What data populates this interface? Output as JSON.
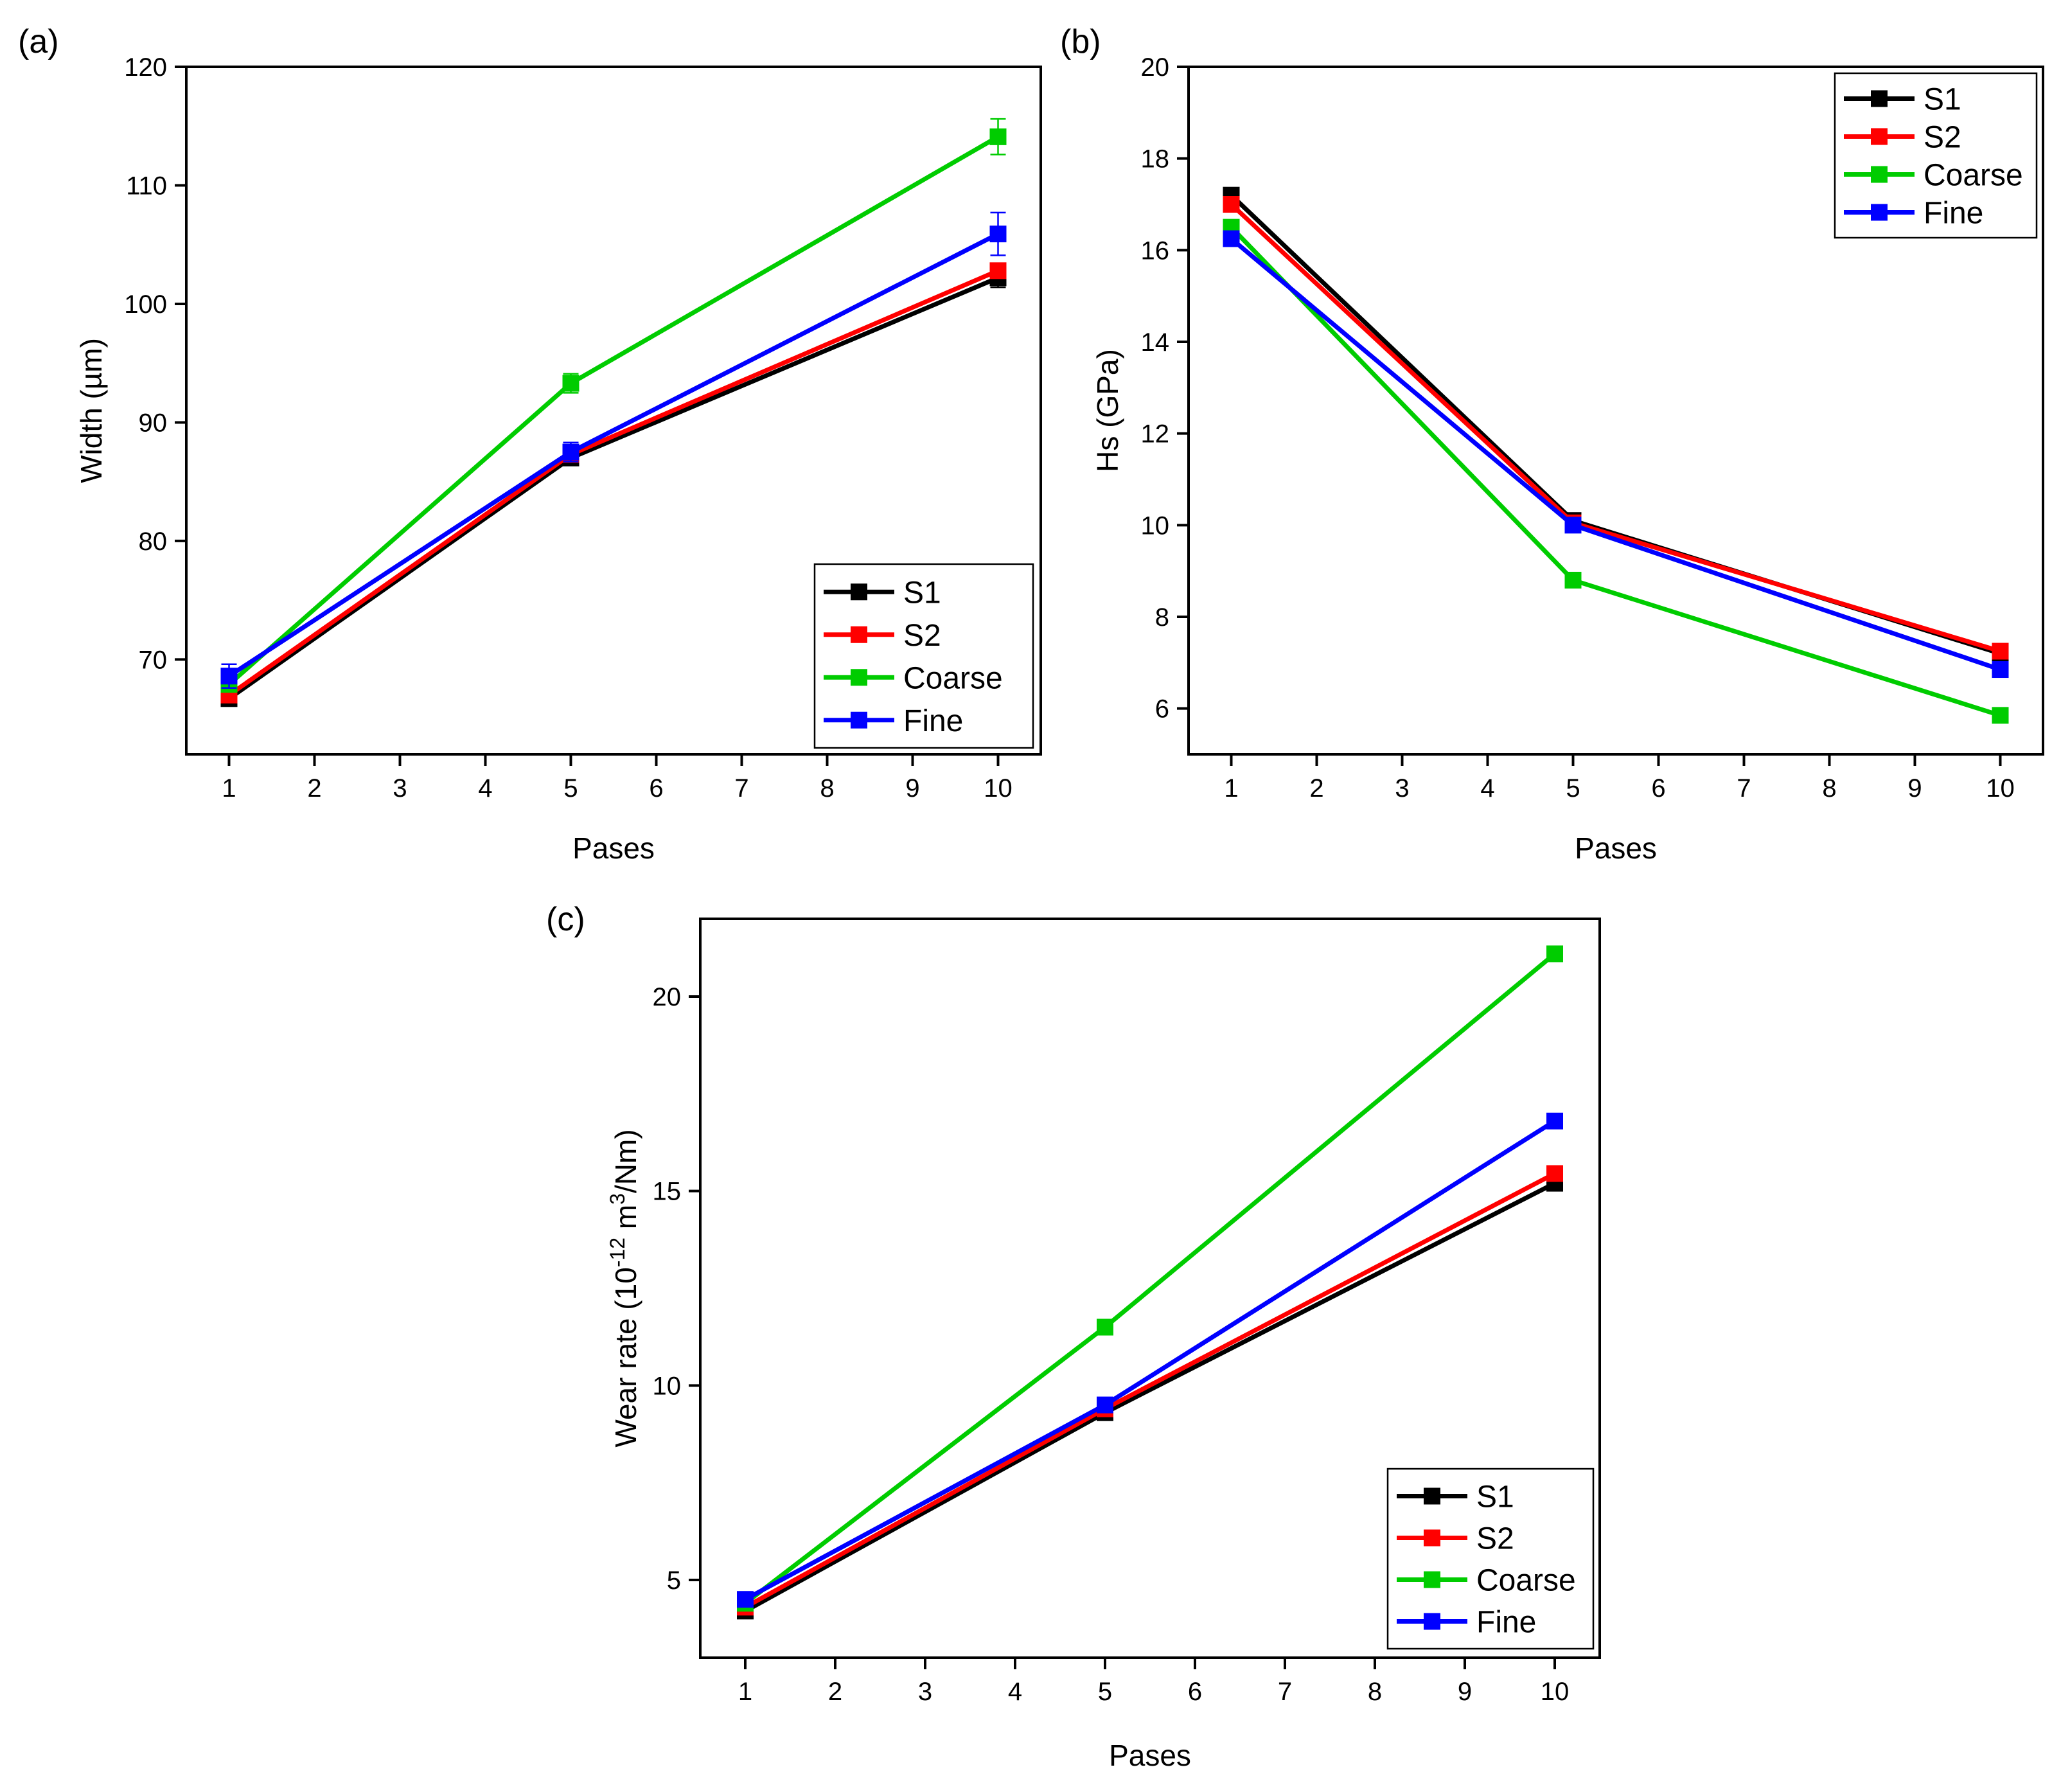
{
  "chart_data": [
    {
      "type": "line",
      "panel_label": "(a)",
      "title": "",
      "xlabel": "Pases",
      "ylabel": "Width (µm)",
      "x": [
        1,
        5,
        10
      ],
      "xlim": [
        0.5,
        10.5
      ],
      "ylim": [
        62,
        120
      ],
      "xticks": [
        1,
        2,
        3,
        4,
        5,
        6,
        7,
        8,
        9,
        10
      ],
      "yticks": [
        70,
        80,
        90,
        100,
        110,
        120
      ],
      "grid": false,
      "legend_position": "bottom-right",
      "series": [
        {
          "name": "S1",
          "color": "#000000",
          "values": [
            66.7,
            87.0,
            102.2
          ],
          "error": [
            0.4,
            0.4,
            0.8
          ]
        },
        {
          "name": "S2",
          "color": "#ff0000",
          "values": [
            67.0,
            87.3,
            102.8
          ],
          "error": [
            0.4,
            0.4,
            0.6
          ]
        },
        {
          "name": "Coarse",
          "color": "#00cc00",
          "values": [
            67.9,
            93.3,
            114.1
          ],
          "error": [
            0.6,
            0.8,
            1.5
          ]
        },
        {
          "name": "Fine",
          "color": "#0000ff",
          "values": [
            68.6,
            87.5,
            105.9
          ],
          "error": [
            1.0,
            0.8,
            1.8
          ]
        }
      ]
    },
    {
      "type": "line",
      "panel_label": "(b)",
      "title": "",
      "xlabel": "Pases",
      "ylabel": "Hs (GPa)",
      "x": [
        1,
        5,
        10
      ],
      "xlim": [
        0.5,
        10.5
      ],
      "ylim": [
        5,
        20
      ],
      "xticks": [
        1,
        2,
        3,
        4,
        5,
        6,
        7,
        8,
        9,
        10
      ],
      "yticks": [
        6,
        8,
        10,
        12,
        14,
        16,
        18,
        20
      ],
      "grid": false,
      "legend_position": "top-right",
      "series": [
        {
          "name": "S1",
          "color": "#000000",
          "values": [
            17.2,
            10.1,
            7.2
          ]
        },
        {
          "name": "S2",
          "color": "#ff0000",
          "values": [
            17.0,
            10.05,
            7.25
          ]
        },
        {
          "name": "Coarse",
          "color": "#00cc00",
          "values": [
            16.5,
            8.8,
            5.85
          ]
        },
        {
          "name": "Fine",
          "color": "#0000ff",
          "values": [
            16.25,
            10.0,
            6.85
          ]
        }
      ]
    },
    {
      "type": "line",
      "panel_label": "(c)",
      "title": "",
      "xlabel": "Pases",
      "ylabel_main": "Wear rate  (10",
      "ylabel_exp": "-12",
      "ylabel_mid": " m",
      "ylabel_exp2": "3",
      "ylabel_end": "/Nm)",
      "x": [
        1,
        5,
        10
      ],
      "xlim": [
        0.5,
        10.5
      ],
      "ylim": [
        3,
        22
      ],
      "xticks": [
        1,
        2,
        3,
        4,
        5,
        6,
        7,
        8,
        9,
        10
      ],
      "yticks": [
        5,
        10,
        15,
        20
      ],
      "grid": false,
      "legend_position": "bottom-right",
      "series": [
        {
          "name": "S1",
          "color": "#000000",
          "values": [
            4.2,
            9.3,
            15.2
          ]
        },
        {
          "name": "S2",
          "color": "#ff0000",
          "values": [
            4.3,
            9.4,
            15.45
          ]
        },
        {
          "name": "Coarse",
          "color": "#00cc00",
          "values": [
            4.4,
            11.5,
            21.1
          ]
        },
        {
          "name": "Fine",
          "color": "#0000ff",
          "values": [
            4.5,
            9.5,
            16.8
          ]
        }
      ]
    }
  ]
}
